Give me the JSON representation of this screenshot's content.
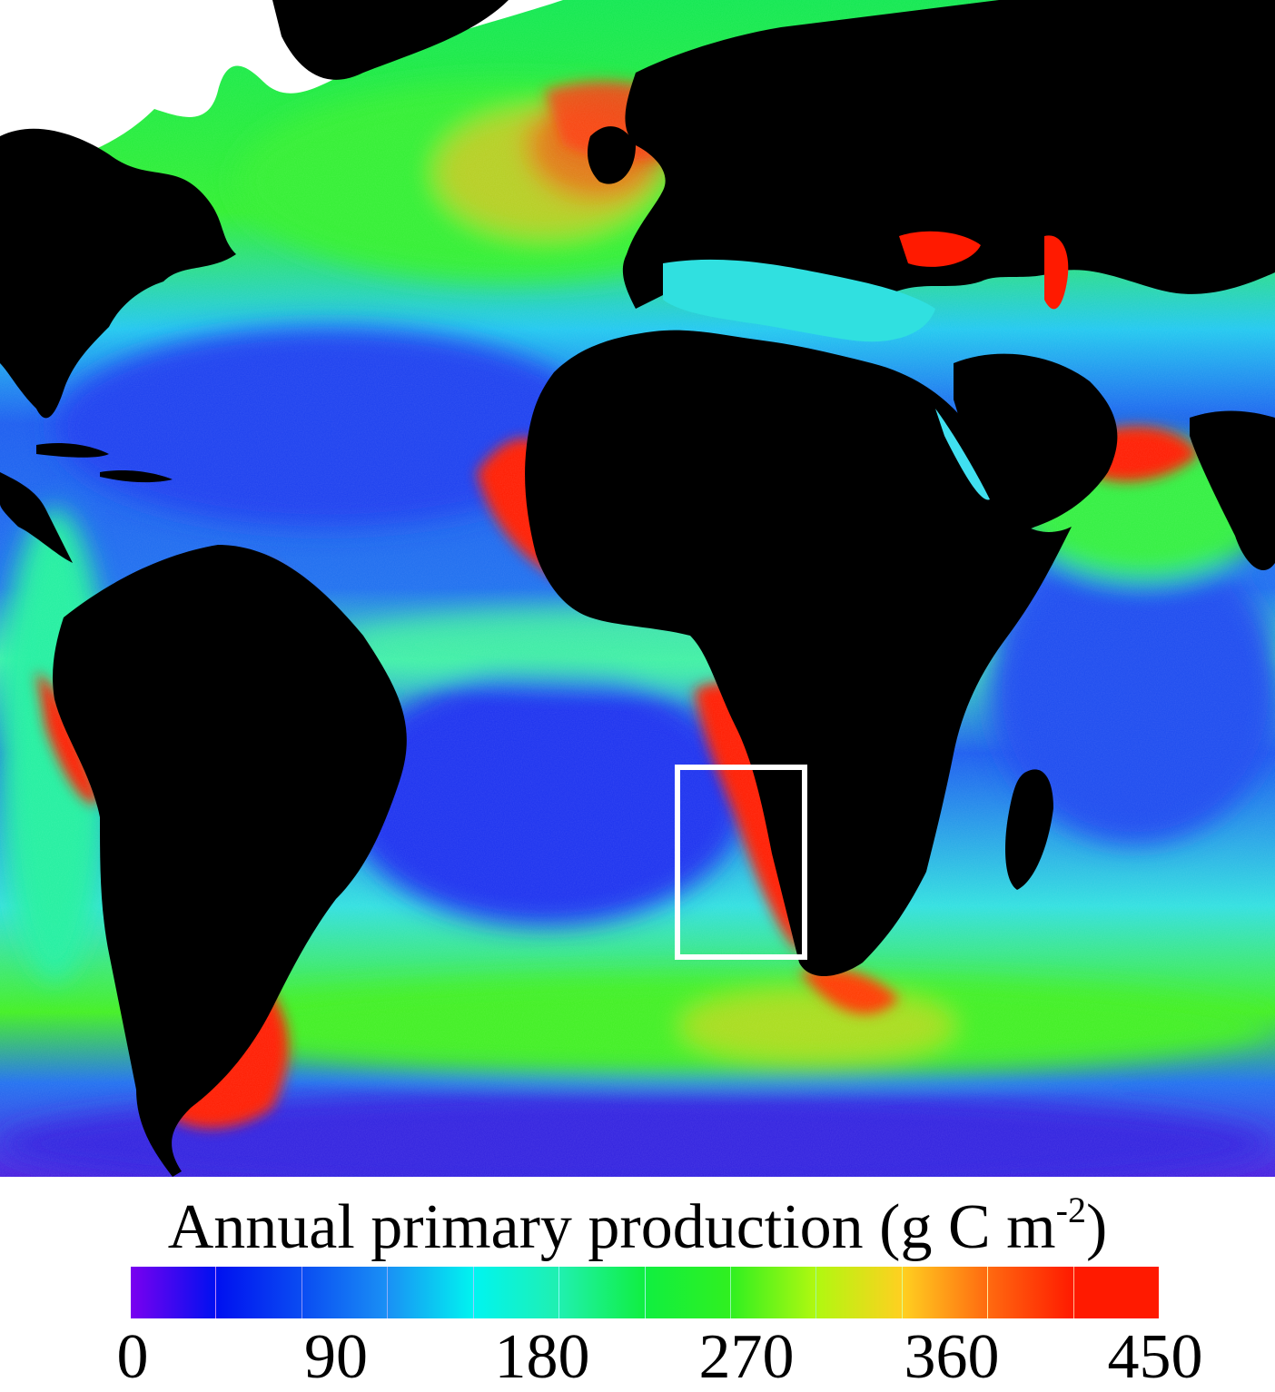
{
  "legend": {
    "title_main": "Annual primary production (g C m",
    "title_sup": "-2",
    "title_end": ")",
    "tick_labels": [
      "0",
      "90",
      "180",
      "270",
      "360",
      "450"
    ],
    "colorbar_colors": [
      "#7a00f0",
      "#0010f0",
      "#0a4cf2",
      "#1a90f5",
      "#00f4f0",
      "#20f0b0",
      "#10ef40",
      "#30f020",
      "#b0f810",
      "#ffd020",
      "#ff6a10",
      "#ff1a00"
    ]
  },
  "map": {
    "ocean_colors": {
      "low": "#1a3cf0",
      "mid_low": "#2a8cf0",
      "mid": "#30e8e0",
      "mid_high": "#30f040",
      "high": "#ff2a00",
      "sea_ice": "#ffffff",
      "land": "#000000",
      "deep_south": "#4a20e0"
    },
    "highlight_box_color": "#ffffff"
  }
}
